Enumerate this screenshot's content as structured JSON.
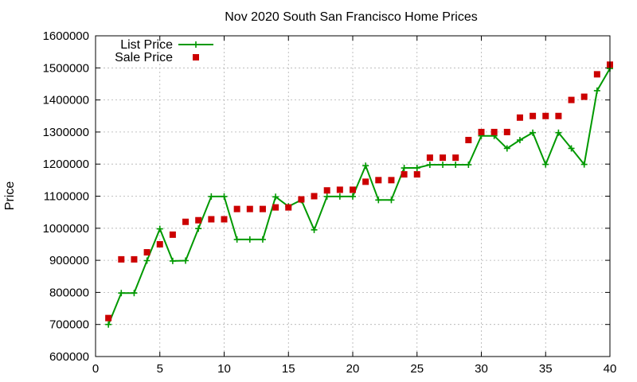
{
  "chart_data": {
    "type": "line",
    "title": "Nov 2020 South San Francisco Home Prices",
    "xlabel": "",
    "ylabel": "Price",
    "xlim": [
      0,
      40
    ],
    "ylim": [
      600000,
      1600000
    ],
    "x_ticks": [
      0,
      5,
      10,
      15,
      20,
      25,
      30,
      35,
      40
    ],
    "y_ticks": [
      600000,
      700000,
      800000,
      900000,
      1000000,
      1100000,
      1200000,
      1300000,
      1400000,
      1500000,
      1600000
    ],
    "grid": true,
    "legend_position": "top-left",
    "series": [
      {
        "name": "List Price",
        "style": "line-with-plus-markers",
        "color": "#009900",
        "x": [
          1,
          2,
          3,
          4,
          5,
          6,
          7,
          8,
          9,
          10,
          11,
          12,
          13,
          14,
          15,
          16,
          17,
          18,
          19,
          20,
          21,
          22,
          23,
          24,
          25,
          26,
          27,
          28,
          29,
          30,
          31,
          32,
          33,
          34,
          35,
          36,
          37,
          38,
          39,
          40
        ],
        "values": [
          700000,
          798000,
          798000,
          899000,
          998000,
          898000,
          899000,
          999000,
          1099000,
          1099000,
          965000,
          965000,
          965000,
          1098000,
          1068000,
          1088000,
          995000,
          1099000,
          1099000,
          1099000,
          1195000,
          1088000,
          1088000,
          1188000,
          1188000,
          1198000,
          1198000,
          1198000,
          1198000,
          1288000,
          1288000,
          1249000,
          1275000,
          1298000,
          1199000,
          1298000,
          1249000,
          1199000,
          1429000,
          1498000
        ]
      },
      {
        "name": "Sale Price",
        "style": "square-markers",
        "color": "#cc0000",
        "x": [
          1,
          2,
          3,
          4,
          5,
          6,
          7,
          8,
          9,
          10,
          11,
          12,
          13,
          14,
          15,
          16,
          17,
          18,
          19,
          20,
          21,
          22,
          23,
          24,
          25,
          26,
          27,
          28,
          29,
          30,
          31,
          32,
          33,
          34,
          35,
          36,
          37,
          38,
          39,
          40
        ],
        "values": [
          720000,
          903000,
          903000,
          925000,
          950000,
          980000,
          1020000,
          1025000,
          1028000,
          1028000,
          1060000,
          1060000,
          1060000,
          1065000,
          1065000,
          1090000,
          1100000,
          1118000,
          1120000,
          1120000,
          1145000,
          1150000,
          1150000,
          1168000,
          1168000,
          1220000,
          1220000,
          1220000,
          1275000,
          1300000,
          1300000,
          1300000,
          1345000,
          1350000,
          1350000,
          1350000,
          1400000,
          1410000,
          1480000,
          1510000
        ]
      }
    ]
  }
}
